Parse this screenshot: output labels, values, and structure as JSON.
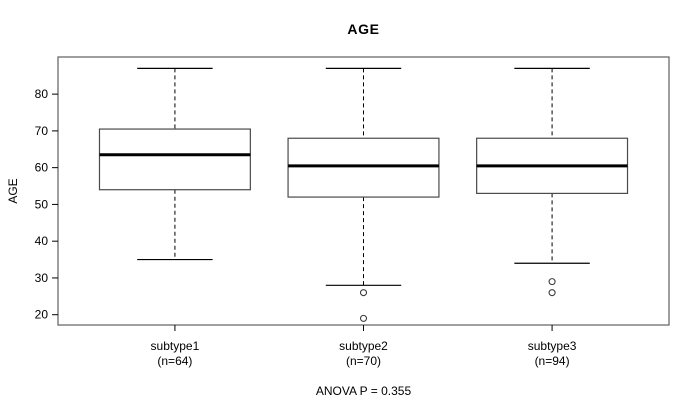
{
  "figure": {
    "title": "AGE",
    "ylabel": "AGE",
    "annotation": "ANOVA P = 0.355"
  },
  "chart_data": {
    "type": "box",
    "title": "AGE",
    "xlabel": "",
    "ylabel": "AGE",
    "annotation": "ANOVA P = 0.355",
    "ylim": [
      17.2,
      90.1
    ],
    "yticks": [
      20,
      30,
      40,
      50,
      60,
      70,
      80
    ],
    "grid": false,
    "categories": [
      "subtype1",
      "subtype2",
      "subtype3"
    ],
    "groups": [
      {
        "label": "subtype1",
        "sublabel": "(n=64)",
        "n": 64,
        "whisker_low": 35,
        "q1": 54,
        "median": 63.5,
        "q3": 70.5,
        "whisker_high": 87,
        "outliers": []
      },
      {
        "label": "subtype2",
        "sublabel": "(n=70)",
        "n": 70,
        "whisker_low": 28,
        "q1": 52,
        "median": 60.5,
        "q3": 68,
        "whisker_high": 87,
        "outliers": [
          26,
          19
        ]
      },
      {
        "label": "subtype3",
        "sublabel": "(n=94)",
        "n": 94,
        "whisker_low": 34,
        "q1": 53,
        "median": 60.5,
        "q3": 68,
        "whisker_high": 87,
        "outliers": [
          29,
          26
        ]
      }
    ],
    "colors": {
      "frame": "#6b6b6b",
      "box_stroke": "#4a4a4a",
      "line": "#000000",
      "median": "#000000",
      "outlier_stroke": "#3a3a3a",
      "background": "#ffffff",
      "text": "#000000"
    }
  }
}
